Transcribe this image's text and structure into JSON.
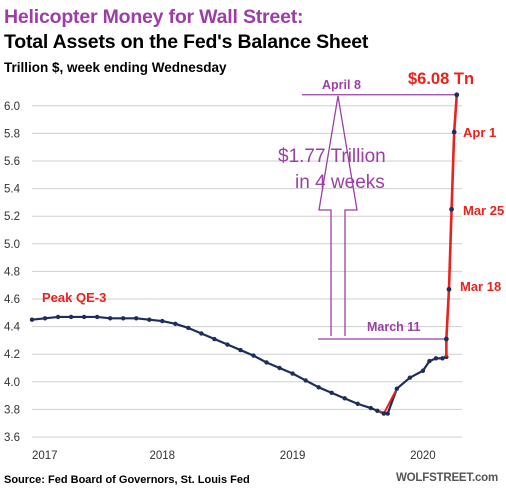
{
  "header": {
    "title_line1": "Helicopter Money for Wall Street:",
    "title_line2": "Total Assets on the Fed's Balance Sheet",
    "subtitle": "Trillion $, week ending Wednesday"
  },
  "footer": {
    "source": "Source: Fed Board of Governors, St. Louis Fed",
    "brand": "WOLFSTREET.com"
  },
  "colors": {
    "series_dark": "#1f2d5c",
    "series_red": "#e8221c",
    "annotation_purple": "#9b3fa6",
    "grid": "#cfcfcf"
  },
  "chart_data": {
    "type": "line",
    "title": "Total Assets on the Fed's Balance Sheet",
    "ylabel": "Trillion $, week ending Wednesday",
    "xlabel": "",
    "xlim": [
      2017.0,
      2020.3
    ],
    "ylim": [
      3.6,
      6.1
    ],
    "grid": "horizontal",
    "yticks": [
      "6.0",
      "5.8",
      "5.6",
      "5.4",
      "5.2",
      "5.0",
      "4.8",
      "4.6",
      "4.4",
      "4.2",
      "4.0",
      "3.8",
      "3.6"
    ],
    "xticks": [
      "2017",
      "2018",
      "2019",
      "2020"
    ],
    "series": [
      {
        "x": [
          2017.0,
          2017.1,
          2017.2,
          2017.3,
          2017.4,
          2017.5,
          2017.6,
          2017.7,
          2017.8,
          2017.9,
          2018.0,
          2018.1,
          2018.2,
          2018.3,
          2018.4,
          2018.5,
          2018.6,
          2018.7,
          2018.8,
          2018.9,
          2019.0,
          2019.1,
          2019.2,
          2019.3,
          2019.4,
          2019.5,
          2019.6,
          2019.65,
          2019.7,
          2019.73,
          2019.8,
          2019.9,
          2020.0,
          2020.05,
          2020.1,
          2020.15,
          2020.18
        ],
        "y": [
          4.45,
          4.46,
          4.47,
          4.47,
          4.47,
          4.47,
          4.46,
          4.46,
          4.46,
          4.45,
          4.44,
          4.42,
          4.39,
          4.35,
          4.31,
          4.27,
          4.23,
          4.19,
          4.14,
          4.1,
          4.06,
          4.01,
          3.96,
          3.92,
          3.88,
          3.84,
          3.81,
          3.79,
          3.77,
          3.77,
          3.95,
          4.03,
          4.08,
          4.15,
          4.17,
          4.17,
          4.18
        ]
      },
      {
        "x": [
          2020.18,
          2020.2,
          2020.22,
          2020.24,
          2020.26
        ],
        "y": [
          4.31,
          4.67,
          5.25,
          5.81,
          6.08
        ]
      }
    ]
  },
  "annotations": {
    "peak_label": "Peak QE-3",
    "value_label": "$6.08 Tn",
    "apr1": "Apr 1",
    "mar25": "Mar 25",
    "mar18": "Mar 18",
    "april8": "April 8",
    "march11": "March 11",
    "increase_line1": "$1.77 Trillion",
    "increase_line2": "in 4 weeks"
  }
}
